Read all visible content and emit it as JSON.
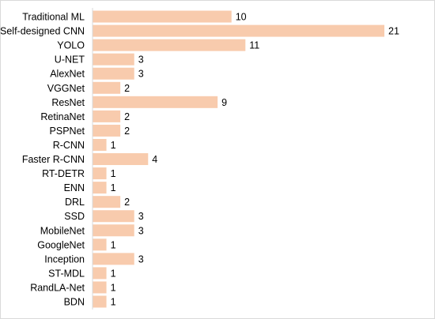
{
  "chart_data": {
    "type": "bar",
    "orientation": "horizontal",
    "bar_color": "#F8CBAD",
    "axis_color": "#D9D9D9",
    "grid": false,
    "legend": "none",
    "xlim": [
      0,
      21
    ],
    "categories": [
      "Traditional ML",
      "Self-designed CNN",
      "YOLO",
      "U-NET",
      "AlexNet",
      "VGGNet",
      "ResNet",
      "RetinaNet",
      "PSPNet",
      "R-CNN",
      "Faster R-CNN",
      "RT-DETR",
      "ENN",
      "DRL",
      "SSD",
      "MobileNet",
      "GoogleNet",
      "Inception",
      "ST-MDL",
      "RandLA-Net",
      "BDN"
    ],
    "values": [
      10,
      21,
      11,
      3,
      3,
      2,
      9,
      2,
      2,
      1,
      4,
      1,
      1,
      2,
      3,
      3,
      1,
      3,
      1,
      1,
      1
    ]
  }
}
